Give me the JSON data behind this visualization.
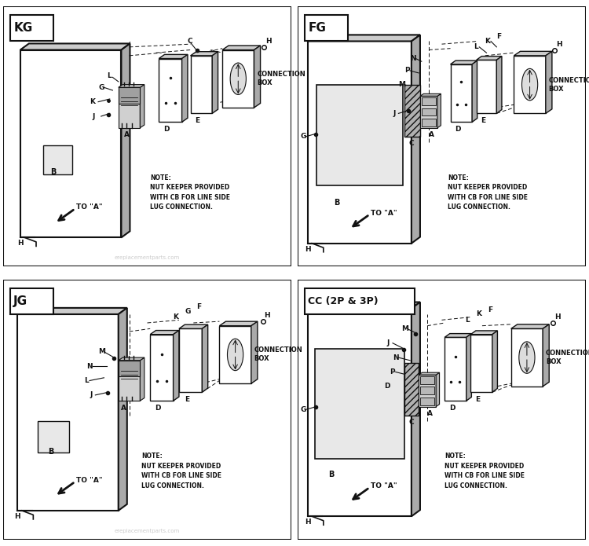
{
  "bg_color": "#ffffff",
  "line_color": "#111111",
  "gray_light": "#cccccc",
  "gray_mid": "#aaaaaa",
  "gray_dark": "#666666",
  "panels": [
    "KG",
    "FG",
    "JG",
    "CC (2P & 3P)"
  ],
  "note_text": "NOTE:\nNUT KEEPER PROVIDED\nWITH CB FOR LINE SIDE\nLUG CONNECTION.",
  "conn_box_text": "CONNECTION\nBOX",
  "to_a": "TO \"A\"",
  "watermark": "ereplacementparts.com"
}
